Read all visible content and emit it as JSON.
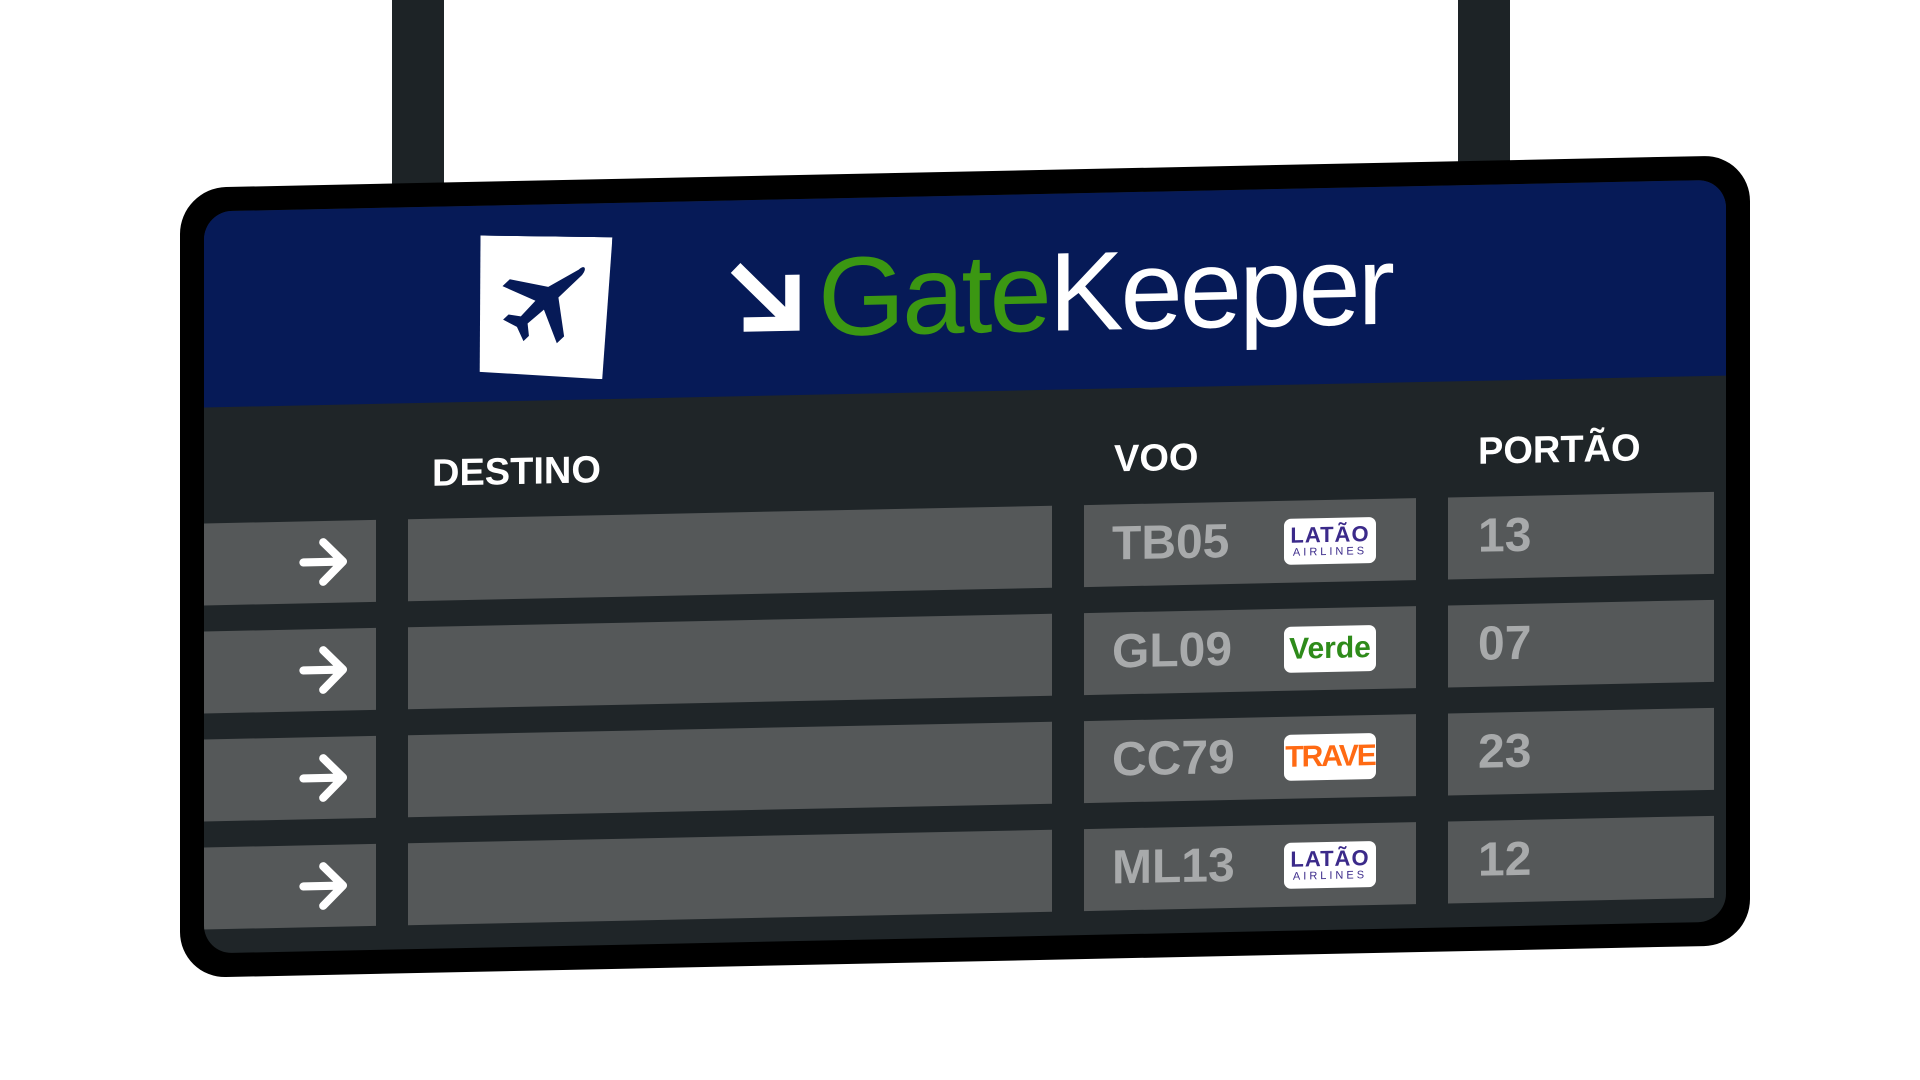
{
  "brand": {
    "name_part1": "Gate",
    "name_part2": "Keeper",
    "colors": {
      "header_bg": "#061a57",
      "accent_green": "#3b9712",
      "cell_bg": "#555859",
      "board_bg": "#1f2528"
    }
  },
  "columns": {
    "destination": "DESTINO",
    "flight": "VOO",
    "gate": "PORTÃO"
  },
  "rows": [
    {
      "destination": "",
      "flight": "TB05",
      "airline": "LATÃO AIRLINES",
      "airline_main": "LATÃO",
      "airline_sub": "AIRLINES",
      "gate": "13"
    },
    {
      "destination": "",
      "flight": "GL09",
      "airline": "Verde",
      "gate": "07"
    },
    {
      "destination": "",
      "flight": "CC79",
      "airline": "TRAVE",
      "gate": "23"
    },
    {
      "destination": "",
      "flight": "ML13",
      "airline": "LATÃO AIRLINES",
      "airline_main": "LATÃO",
      "airline_sub": "AIRLINES",
      "gate": "12"
    }
  ],
  "icons": [
    "plane-icon",
    "diagonal-arrow-icon",
    "right-arrow-icon"
  ]
}
